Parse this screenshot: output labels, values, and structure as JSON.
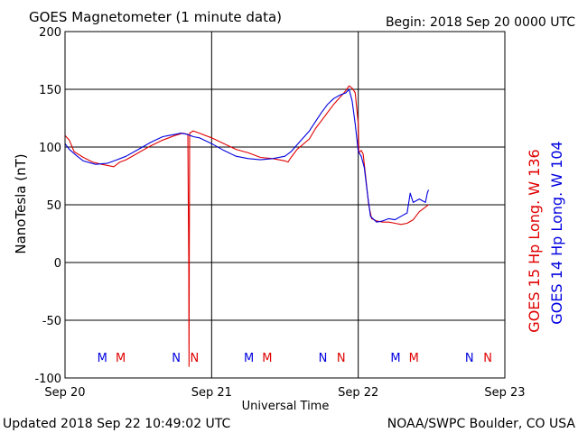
{
  "chart_data": {
    "type": "line",
    "title": "GOES Magnetometer (1 minute data)",
    "begin_label": "Begin:  2018 Sep 20 0000 UTC",
    "ylabel": "NanoTesla (nT)",
    "xlabel": "Universal Time",
    "ylim": [
      -100,
      200
    ],
    "yticks": [
      200,
      150,
      100,
      50,
      0,
      -50,
      -100
    ],
    "xlim": [
      0,
      72
    ],
    "xticks": [
      {
        "hour": 0,
        "label": "Sep 20"
      },
      {
        "hour": 24,
        "label": "Sep 21"
      },
      {
        "hour": 48,
        "label": "Sep 22"
      },
      {
        "hour": 72,
        "label": "Sep 23"
      }
    ],
    "grid": true,
    "series": [
      {
        "name": "GOES 15 Hp  Long. W 136",
        "color": "#e00000",
        "points": [
          [
            0,
            110
          ],
          [
            0.7,
            106
          ],
          [
            1.5,
            96
          ],
          [
            3,
            91
          ],
          [
            4.5,
            87
          ],
          [
            6,
            85
          ],
          [
            8,
            83
          ],
          [
            9,
            87
          ],
          [
            10,
            89
          ],
          [
            12,
            95
          ],
          [
            14,
            101
          ],
          [
            16,
            106
          ],
          [
            18,
            110
          ],
          [
            19.3,
            112
          ],
          [
            20.1,
            111
          ],
          [
            20.2,
            40
          ],
          [
            20.25,
            0
          ],
          [
            20.3,
            -90
          ],
          [
            20.35,
            10
          ],
          [
            20.4,
            112
          ],
          [
            21,
            114
          ],
          [
            22,
            112
          ],
          [
            24,
            108
          ],
          [
            26,
            103
          ],
          [
            28,
            98
          ],
          [
            30,
            95
          ],
          [
            32,
            91
          ],
          [
            34,
            90
          ],
          [
            35,
            89
          ],
          [
            36,
            88
          ],
          [
            36.5,
            87
          ],
          [
            37,
            91
          ],
          [
            38,
            98
          ],
          [
            40,
            107
          ],
          [
            41,
            116
          ],
          [
            42,
            123
          ],
          [
            43,
            130
          ],
          [
            44,
            137
          ],
          [
            44.5,
            140
          ],
          [
            45,
            143
          ],
          [
            45.5,
            146
          ],
          [
            46,
            149
          ],
          [
            46.5,
            153
          ],
          [
            47,
            151
          ],
          [
            47.5,
            147
          ],
          [
            48,
            120
          ],
          [
            48.1,
            95
          ],
          [
            48.5,
            97
          ],
          [
            48.8,
            94
          ],
          [
            49.2,
            75
          ],
          [
            49.7,
            50
          ],
          [
            50.2,
            38
          ],
          [
            51,
            36
          ],
          [
            52,
            35
          ],
          [
            53,
            35
          ],
          [
            54,
            34
          ],
          [
            55,
            33
          ],
          [
            56,
            34
          ],
          [
            57,
            37
          ],
          [
            58,
            44
          ],
          [
            59,
            48
          ],
          [
            59.5,
            50
          ]
        ]
      },
      {
        "name": "GOES 14 Hp  Long. W 104",
        "color": "#0000e0",
        "points": [
          [
            0,
            103
          ],
          [
            0.7,
            98
          ],
          [
            2,
            92
          ],
          [
            3,
            88
          ],
          [
            5,
            85
          ],
          [
            7,
            86
          ],
          [
            8,
            88
          ],
          [
            9,
            90
          ],
          [
            10,
            92
          ],
          [
            12,
            98
          ],
          [
            14,
            104
          ],
          [
            16,
            109
          ],
          [
            17,
            110
          ],
          [
            18,
            111
          ],
          [
            19,
            112
          ],
          [
            20,
            111
          ],
          [
            20.5,
            110
          ],
          [
            21,
            109
          ],
          [
            22,
            108
          ],
          [
            24,
            103
          ],
          [
            26,
            97
          ],
          [
            28,
            92
          ],
          [
            30,
            90
          ],
          [
            32,
            89
          ],
          [
            34,
            90
          ],
          [
            36,
            92
          ],
          [
            37,
            96
          ],
          [
            38,
            102
          ],
          [
            40,
            114
          ],
          [
            41,
            122
          ],
          [
            42,
            130
          ],
          [
            43,
            137
          ],
          [
            44,
            142
          ],
          [
            45,
            145
          ],
          [
            46,
            147
          ],
          [
            46.5,
            150
          ],
          [
            47,
            140
          ],
          [
            47.5,
            120
          ],
          [
            48,
            96
          ],
          [
            48.5,
            92
          ],
          [
            49,
            82
          ],
          [
            49.5,
            60
          ],
          [
            50,
            40
          ],
          [
            51,
            35
          ],
          [
            52,
            36
          ],
          [
            53,
            38
          ],
          [
            54,
            37
          ],
          [
            55,
            40
          ],
          [
            56,
            43
          ],
          [
            56.5,
            60
          ],
          [
            57,
            52
          ],
          [
            58,
            55
          ],
          [
            59,
            52
          ],
          [
            59.3,
            60
          ],
          [
            59.5,
            63
          ]
        ]
      }
    ],
    "markers": {
      "colors": {
        "M": "#0000e0",
        "N": "#e00000"
      },
      "items": [
        {
          "letter": "M",
          "hour": 6.1,
          "color": "#0000e0"
        },
        {
          "letter": "M",
          "hour": 9.1,
          "color": "#e00000"
        },
        {
          "letter": "N",
          "hour": 18.2,
          "color": "#0000e0"
        },
        {
          "letter": "N",
          "hour": 21.2,
          "color": "#e00000"
        },
        {
          "letter": "M",
          "hour": 30.1,
          "color": "#0000e0"
        },
        {
          "letter": "M",
          "hour": 33.1,
          "color": "#e00000"
        },
        {
          "letter": "N",
          "hour": 42.2,
          "color": "#0000e0"
        },
        {
          "letter": "N",
          "hour": 45.2,
          "color": "#e00000"
        },
        {
          "letter": "M",
          "hour": 54.1,
          "color": "#0000e0"
        },
        {
          "letter": "M",
          "hour": 57.1,
          "color": "#e00000"
        },
        {
          "letter": "N",
          "hour": 66.2,
          "color": "#0000e0"
        },
        {
          "letter": "N",
          "hour": 69.2,
          "color": "#e00000"
        }
      ]
    }
  },
  "footer": {
    "updated": "Updated 2018 Sep 22 10:49:02 UTC",
    "source": "NOAA/SWPC Boulder, CO USA"
  }
}
